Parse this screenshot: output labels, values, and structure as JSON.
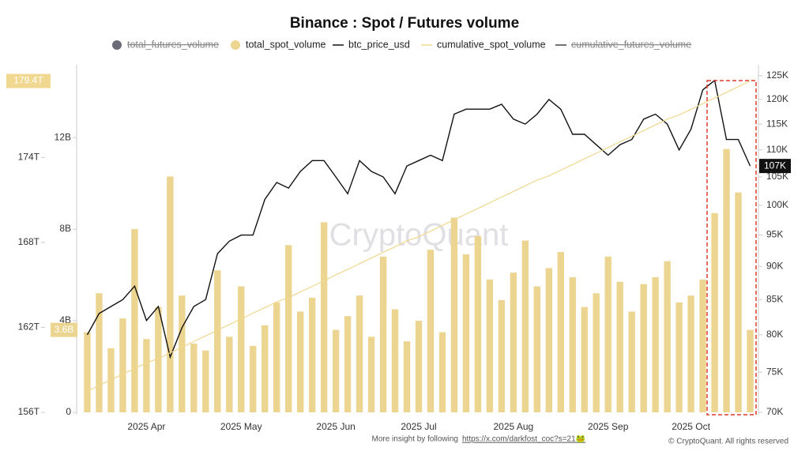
{
  "chart_data": {
    "type": "combo",
    "title": "Binance : Spot / Futures volume",
    "watermark": "CryptoQuant",
    "footer_text": "More insight by following",
    "footer_link": "https://x.com/darkfost_coc?s=21🐸",
    "credit": "© CryptoQuant. All rights reserved",
    "categories": [
      null,
      null,
      null,
      null,
      null,
      "2025 Apr",
      null,
      null,
      null,
      null,
      null,
      null,
      null,
      "2025 May",
      null,
      null,
      null,
      null,
      null,
      null,
      null,
      "2025 Jun",
      null,
      null,
      null,
      null,
      null,
      null,
      "2025 Jul",
      null,
      null,
      null,
      null,
      null,
      null,
      null,
      "2025 Aug",
      null,
      null,
      null,
      null,
      null,
      null,
      null,
      "2025 Sep",
      null,
      null,
      null,
      null,
      null,
      null,
      "2025 Oct",
      null,
      null,
      null,
      null,
      null
    ],
    "series": [
      {
        "name": "total_futures_volume",
        "color": "#6b6b78",
        "marker": "dot",
        "hidden": true
      },
      {
        "name": "total_spot_volume",
        "type": "bar",
        "color": "#ecd591",
        "marker": "dot",
        "axis": "y",
        "last_label": "3.6B",
        "values": [
          3.5,
          5.2,
          2.8,
          4.1,
          8.0,
          3.2,
          4.6,
          10.3,
          5.1,
          3.0,
          2.7,
          6.2,
          3.3,
          5.5,
          2.9,
          3.8,
          4.8,
          7.3,
          4.4,
          5.0,
          8.3,
          3.6,
          4.2,
          5.1,
          3.3,
          6.8,
          4.5,
          3.1,
          4.0,
          7.1,
          3.5,
          8.5,
          6.9,
          7.7,
          5.8,
          4.9,
          6.1,
          7.5,
          5.5,
          6.3,
          7.0,
          5.9,
          4.6,
          5.2,
          6.8,
          5.7,
          4.4,
          5.6,
          5.9,
          6.6,
          4.8,
          5.1,
          5.8,
          8.7,
          11.5,
          9.6,
          3.6
        ]
      },
      {
        "name": "btc_price_usd",
        "type": "line",
        "color": "#111111",
        "marker": "line",
        "axis": "y2",
        "last_label": "107K",
        "values": [
          80,
          83,
          84,
          85,
          87,
          82,
          84,
          77,
          81,
          84,
          85,
          92,
          94,
          95,
          95,
          101,
          104,
          103,
          106,
          108,
          108,
          105,
          102,
          108,
          106,
          105,
          102,
          107,
          108,
          109,
          108,
          117,
          118,
          118,
          118,
          119,
          116,
          115,
          117,
          120,
          118,
          113,
          113,
          111,
          109,
          111,
          112,
          116,
          117,
          115,
          110,
          114,
          122,
          124,
          112,
          112,
          107
        ]
      },
      {
        "name": "cumulative_spot_volume",
        "type": "line",
        "color": "#f0d890",
        "marker": "line",
        "axis": "y3",
        "last_label": "179.4T",
        "values": [
          157.5,
          157.9,
          158.3,
          158.7,
          159.1,
          159.5,
          159.8,
          160.2,
          160.6,
          161.0,
          161.4,
          161.8,
          162.2,
          162.6,
          163.0,
          163.4,
          163.8,
          164.1,
          164.5,
          164.9,
          165.3,
          165.7,
          166.1,
          166.5,
          166.9,
          167.3,
          167.7,
          168.1,
          168.4,
          168.8,
          169.2,
          169.6,
          170.0,
          170.4,
          170.8,
          171.2,
          171.6,
          172.0,
          172.4,
          172.7,
          173.1,
          173.5,
          173.9,
          174.3,
          174.7,
          175.1,
          175.5,
          175.9,
          176.3,
          176.7,
          177.0,
          177.4,
          177.8,
          178.2,
          178.6,
          179.0,
          179.4
        ]
      },
      {
        "name": "cumulative_futures_volume",
        "color": "#444444",
        "marker": "line",
        "hidden": true
      }
    ],
    "ylim": [
      0,
      14.9
    ],
    "yticks": [
      0,
      {
        "value": 4,
        "label": "4B"
      },
      {
        "value": 8,
        "label": "8B"
      },
      {
        "value": 12,
        "label": "12B"
      }
    ],
    "y2lim": [
      70,
      126
    ],
    "y2log": true,
    "y2ticks": [
      {
        "value": 70,
        "label": "70K"
      },
      {
        "value": 75,
        "label": "75K"
      },
      {
        "value": 80,
        "label": "80K"
      },
      {
        "value": 85,
        "label": "85K"
      },
      {
        "value": 90,
        "label": "90K"
      },
      {
        "value": 95,
        "label": "95K"
      },
      {
        "value": 100,
        "label": "100K"
      },
      {
        "value": 105,
        "label": "105K"
      },
      {
        "value": 110,
        "label": "110K"
      },
      {
        "value": 115,
        "label": "115K"
      },
      {
        "value": 120,
        "label": "120K"
      },
      {
        "value": 125,
        "label": "125K"
      }
    ],
    "y3lim": [
      156,
      180.1
    ],
    "y3ticks": [
      {
        "value": 156,
        "label": "156T"
      },
      {
        "value": 162,
        "label": "162T"
      },
      {
        "value": 168,
        "label": "168T"
      },
      {
        "value": 174,
        "label": "174T"
      }
    ]
  }
}
